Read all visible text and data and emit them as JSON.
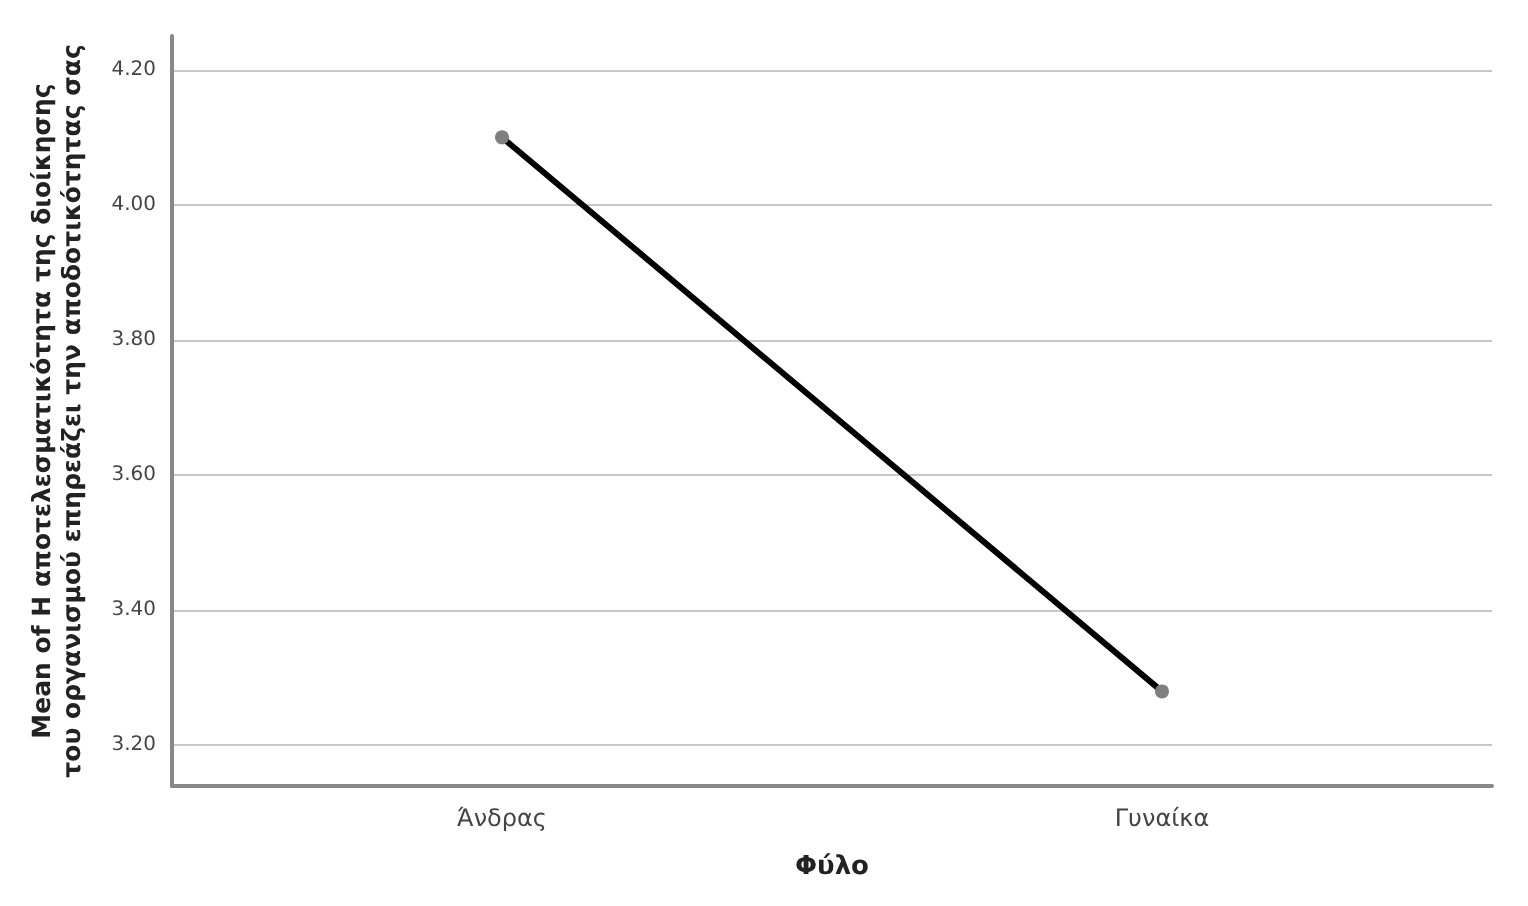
{
  "chart_data": {
    "type": "line",
    "xlabel": "Φύλο",
    "ylabel": "Mean of Η αποτελεσματικότητα της διοίκησης του οργανισμού επηρεάζει την αποδοτικότητας σας",
    "categories": [
      "Άνδρας",
      "Γυναίκα"
    ],
    "series": [
      {
        "color": "#000000",
        "values": [
          4.1,
          3.28
        ]
      }
    ],
    "ylim": [
      3.14,
      4.25
    ],
    "yticks": [
      {
        "value": 3.2,
        "label": "3.20"
      },
      {
        "value": 3.4,
        "label": "3.40"
      },
      {
        "value": 3.6,
        "label": "3.60"
      },
      {
        "value": 3.8,
        "label": "3.80"
      },
      {
        "value": 4.0,
        "label": "4.00"
      },
      {
        "value": 4.2,
        "label": "4.20"
      }
    ],
    "grid": "y",
    "marker": "circle",
    "line_style": "solid"
  }
}
